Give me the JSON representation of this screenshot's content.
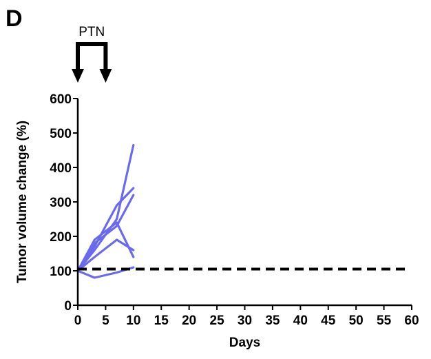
{
  "panel_label": "D",
  "chart_data": {
    "type": "line",
    "xlabel": "Days",
    "ylabel": "Tumor volume change (%)",
    "xlim": [
      0,
      60
    ],
    "ylim": [
      0,
      600
    ],
    "x_ticks": [
      0,
      5,
      10,
      15,
      20,
      25,
      30,
      35,
      40,
      45,
      50,
      55,
      60
    ],
    "y_ticks": [
      0,
      100,
      200,
      300,
      400,
      500,
      600
    ],
    "grid": false,
    "line_color": "#6a6af0",
    "reference_line": {
      "y": 105,
      "x_range": [
        0,
        60
      ],
      "style": "dashed",
      "color": "#000000"
    },
    "treatment": {
      "label": "PTN",
      "start_day": 0,
      "end_day": 5
    },
    "series": [
      {
        "x": [
          0,
          3,
          7,
          10
        ],
        "y": [
          100,
          160,
          250,
          465
        ]
      },
      {
        "x": [
          0,
          3,
          7,
          10
        ],
        "y": [
          100,
          170,
          290,
          340
        ]
      },
      {
        "x": [
          0,
          3,
          7,
          10
        ],
        "y": [
          100,
          180,
          230,
          320
        ]
      },
      {
        "x": [
          0,
          3,
          7,
          10
        ],
        "y": [
          100,
          190,
          240,
          140
        ]
      },
      {
        "x": [
          0,
          3,
          7,
          10
        ],
        "y": [
          100,
          140,
          190,
          160
        ]
      },
      {
        "x": [
          0,
          3,
          7,
          10
        ],
        "y": [
          100,
          80,
          95,
          110
        ]
      }
    ]
  }
}
